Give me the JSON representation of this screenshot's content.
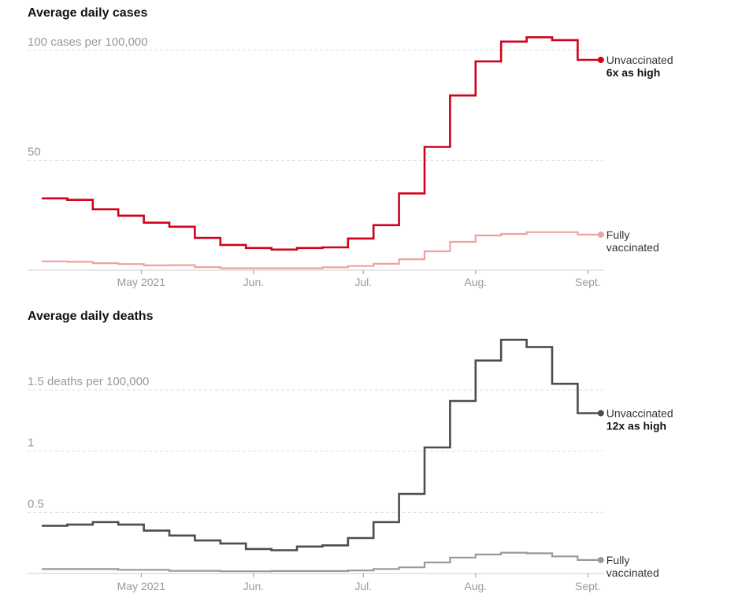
{
  "chart_data": [
    {
      "type": "line",
      "step": true,
      "title": "Average daily cases",
      "ylabel": "cases per 100,000",
      "ylim": [
        0,
        100
      ],
      "yticks": [
        {
          "value": 100,
          "label": "100 cases per 100,000"
        },
        {
          "value": 50,
          "label": "50"
        }
      ],
      "grid": true,
      "x_weeks": 22,
      "xticks": [
        {
          "week": 3.9,
          "label": "May 2021"
        },
        {
          "week": 8.3,
          "label": "Jun."
        },
        {
          "week": 12.6,
          "label": "Jul."
        },
        {
          "week": 17.0,
          "label": "Aug."
        },
        {
          "week": 21.4,
          "label": "Sept."
        }
      ],
      "series": [
        {
          "name": "Unvaccinated",
          "annotation": "6x as high",
          "color": "#d0021b",
          "values": [
            32.7,
            32.0,
            27.7,
            24.8,
            21.6,
            19.8,
            14.7,
            11.5,
            10.1,
            9.4,
            10.1,
            10.4,
            14.4,
            20.5,
            34.9,
            56.1,
            79.5,
            95.0,
            104.0,
            106.0,
            104.7,
            95.7
          ]
        },
        {
          "name": "Fully vaccinated",
          "annotation": "",
          "color": "#f0a0a0",
          "values": [
            4.0,
            3.8,
            3.2,
            2.8,
            2.2,
            2.3,
            1.4,
            0.9,
            0.9,
            0.9,
            0.9,
            1.3,
            1.9,
            2.9,
            5.0,
            8.6,
            12.9,
            15.8,
            16.5,
            17.3,
            17.3,
            16.2
          ]
        }
      ]
    },
    {
      "type": "line",
      "step": true,
      "title": "Average daily deaths",
      "ylabel": "deaths per 100,000",
      "ylim": [
        0,
        1.5
      ],
      "yticks": [
        {
          "value": 1.5,
          "label": "1.5 deaths per 100,000"
        },
        {
          "value": 1,
          "label": "1"
        },
        {
          "value": 0.5,
          "label": "0.5"
        }
      ],
      "grid": true,
      "x_weeks": 22,
      "xticks": [
        {
          "week": 3.9,
          "label": "May 2021"
        },
        {
          "week": 8.3,
          "label": "Jun."
        },
        {
          "week": 12.6,
          "label": "Jul."
        },
        {
          "week": 17.0,
          "label": "Aug."
        },
        {
          "week": 21.4,
          "label": "Sept."
        }
      ],
      "series": [
        {
          "name": "Unvaccinated",
          "annotation": "12x as high",
          "color": "#4d4d4d",
          "values": [
            0.39,
            0.4,
            0.42,
            0.4,
            0.35,
            0.31,
            0.27,
            0.245,
            0.2,
            0.19,
            0.22,
            0.23,
            0.29,
            0.42,
            0.65,
            1.03,
            1.41,
            1.74,
            1.91,
            1.85,
            1.55,
            1.31
          ]
        },
        {
          "name": "Fully vaccinated",
          "annotation": "",
          "color": "#999999",
          "values": [
            0.036,
            0.036,
            0.036,
            0.03,
            0.03,
            0.022,
            0.022,
            0.018,
            0.018,
            0.02,
            0.02,
            0.02,
            0.025,
            0.037,
            0.05,
            0.09,
            0.13,
            0.155,
            0.17,
            0.165,
            0.14,
            0.11
          ]
        }
      ]
    }
  ],
  "labels": {
    "end_label_line2_fully": "vaccinated",
    "end_label_line1_fully": "Fully"
  }
}
